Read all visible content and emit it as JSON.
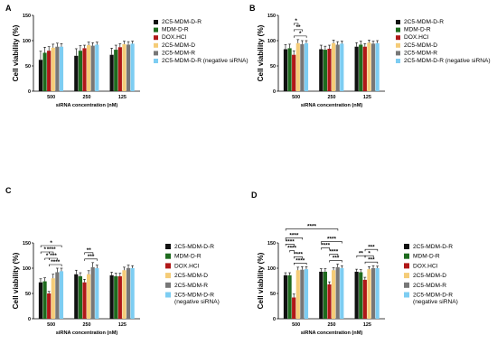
{
  "colors": [
    "#111111",
    "#1e6b1e",
    "#b01818",
    "#f5cc78",
    "#777777",
    "#7dcdf2"
  ],
  "chart_data": [
    {
      "panel_label": "A",
      "type": "bar",
      "ylabel": "Cell viability  (%)",
      "xlabel": "siRNA concentration (nM)",
      "ylim": [
        0,
        150
      ],
      "yticks": [
        "0",
        "50",
        "100",
        "150"
      ],
      "categories": [
        "500",
        "250",
        "125"
      ],
      "legend": [
        "2C5-MDM-D-R",
        "MDM-D-R",
        "DOX.HCl",
        "2C5-MDM-D",
        "2C5-MDM-R",
        "2C5-MDM-D-R (negative siRNA)"
      ],
      "series": [
        {
          "name": "2C5-MDM-D-R",
          "values": [
            62,
            70,
            72
          ],
          "errors": [
            17,
            14,
            13
          ]
        },
        {
          "name": "MDM-D-R",
          "values": [
            76,
            80,
            82
          ],
          "errors": [
            11,
            10,
            9
          ]
        },
        {
          "name": "DOX.HCl",
          "values": [
            80,
            85,
            87
          ],
          "errors": [
            8,
            6,
            7
          ]
        },
        {
          "name": "2C5-MDM-D",
          "values": [
            86,
            91,
            93
          ],
          "errors": [
            7,
            6,
            6
          ]
        },
        {
          "name": "2C5-MDM-R",
          "values": [
            88,
            90,
            92
          ],
          "errors": [
            7,
            6,
            6
          ]
        },
        {
          "name": "2C5-MDM-D-R (negative siRNA)",
          "values": [
            88,
            92,
            94
          ],
          "errors": [
            6,
            5,
            5
          ]
        }
      ],
      "significance": []
    },
    {
      "panel_label": "B",
      "type": "bar",
      "ylabel": "Cell viability  (%)",
      "xlabel": "siRNA concentration (nM)",
      "ylim": [
        0,
        150
      ],
      "yticks": [
        "0",
        "50",
        "100",
        "150"
      ],
      "categories": [
        "500",
        "250",
        "125"
      ],
      "legend": [
        "2C5-MDM-D-R",
        "MDM-D-R",
        "DOX.HCl",
        "2C5-MDM-D",
        "2C5-MDM-R",
        "2C5-MDM-D-R (negative siRNA)"
      ],
      "series": [
        {
          "name": "2C5-MDM-D-R",
          "values": [
            83,
            83,
            88
          ],
          "errors": [
            9,
            8,
            8
          ]
        },
        {
          "name": "MDM-D-R",
          "values": [
            85,
            82,
            92
          ],
          "errors": [
            8,
            7,
            7
          ]
        },
        {
          "name": "DOX.HCl",
          "values": [
            72,
            84,
            88
          ],
          "errors": [
            8,
            7,
            6
          ]
        },
        {
          "name": "2C5-MDM-D",
          "values": [
            95,
            95,
            96
          ],
          "errors": [
            7,
            6,
            5
          ]
        },
        {
          "name": "2C5-MDM-R",
          "values": [
            93,
            92,
            94
          ],
          "errors": [
            7,
            6,
            5
          ]
        },
        {
          "name": "2C5-MDM-D-R (negative siRNA)",
          "values": [
            95,
            94,
            95
          ],
          "errors": [
            5,
            5,
            5
          ]
        }
      ],
      "significance": [
        {
          "text": "*",
          "from": [
            0,
            2
          ],
          "to": [
            0,
            5
          ],
          "level": 0
        },
        {
          "text": "**",
          "from": [
            0,
            2
          ],
          "to": [
            0,
            4
          ],
          "level": 1
        },
        {
          "text": "*",
          "from": [
            0,
            2
          ],
          "to": [
            0,
            3
          ],
          "level": 2
        }
      ]
    },
    {
      "panel_label": "C",
      "type": "bar",
      "ylabel": "Cell viability  (%)",
      "xlabel": "siRNA concentration (nM)",
      "ylim": [
        0,
        150
      ],
      "yticks": [
        "0",
        "50",
        "100",
        "150"
      ],
      "categories": [
        "500",
        "250",
        "125"
      ],
      "legend": [
        "2C5-MDM-D-R",
        "MDM-D-R",
        "DOX.HCl",
        "2C5-MDM-D",
        "2C5-MDM-R",
        "2C5-MDM-D-R (negative siRNA)"
      ],
      "series": [
        {
          "name": "2C5-MDM-D-R",
          "values": [
            72,
            88,
            86
          ],
          "errors": [
            7,
            8,
            6
          ]
        },
        {
          "name": "MDM-D-R",
          "values": [
            74,
            84,
            84
          ],
          "errors": [
            7,
            7,
            6
          ]
        },
        {
          "name": "DOX.HCl",
          "values": [
            50,
            72,
            84
          ],
          "errors": [
            4,
            6,
            6
          ]
        },
        {
          "name": "2C5-MDM-D",
          "values": [
            80,
            88,
            96
          ],
          "errors": [
            8,
            7,
            6
          ]
        },
        {
          "name": "2C5-MDM-R",
          "values": [
            92,
            102,
            100
          ],
          "errors": [
            8,
            9,
            6
          ]
        },
        {
          "name": "2C5-MDM-D-R (negative siRNA)",
          "values": [
            94,
            100,
            100
          ],
          "errors": [
            6,
            6,
            5
          ]
        }
      ],
      "significance": [
        {
          "text": "****",
          "from": [
            0,
            2
          ],
          "to": [
            0,
            5
          ],
          "level": 0
        },
        {
          "text": "***",
          "from": [
            0,
            2
          ],
          "to": [
            0,
            4
          ],
          "level": 1
        },
        {
          "text": "*",
          "from": [
            0,
            1
          ],
          "to": [
            0,
            2
          ],
          "level": 1
        },
        {
          "text": "****",
          "from": [
            0,
            2
          ],
          "to": [
            0,
            3
          ],
          "level": 2
        },
        {
          "text": "*",
          "from": [
            0,
            0
          ],
          "to": [
            0,
            2
          ],
          "level": 2
        },
        {
          "text": "*",
          "from": [
            0,
            0
          ],
          "to": [
            0,
            5
          ],
          "level": 3
        },
        {
          "text": "***",
          "from": [
            1,
            2
          ],
          "to": [
            1,
            5
          ],
          "level": 0
        },
        {
          "text": "**",
          "from": [
            1,
            2
          ],
          "to": [
            1,
            4
          ],
          "level": 1
        }
      ]
    },
    {
      "panel_label": "D",
      "type": "bar",
      "ylabel": "Cell viability  (%)",
      "xlabel": "siRNA concentration (nM)",
      "ylim": [
        0,
        150
      ],
      "yticks": [
        "0",
        "50",
        "100",
        "150"
      ],
      "categories": [
        "500",
        "250",
        "125"
      ],
      "legend": [
        "2C5-MDM-D-R",
        "MDM-D-R",
        "DOX.HCl",
        "2C5-MDM-D",
        "2C5-MDM-R",
        "2C5-MDM-D-R (negative siRNA)"
      ],
      "series": [
        {
          "name": "2C5-MDM-D-R",
          "values": [
            86,
            93,
            93
          ],
          "errors": [
            5,
            6,
            5
          ]
        },
        {
          "name": "MDM-D-R",
          "values": [
            86,
            93,
            92
          ],
          "errors": [
            5,
            6,
            5
          ]
        },
        {
          "name": "DOX.HCl",
          "values": [
            42,
            68,
            77
          ],
          "errors": [
            7,
            5,
            5
          ]
        },
        {
          "name": "2C5-MDM-D",
          "values": [
            96,
            96,
            98
          ],
          "errors": [
            6,
            5,
            5
          ]
        },
        {
          "name": "2C5-MDM-R",
          "values": [
            97,
            102,
            100
          ],
          "errors": [
            6,
            6,
            5
          ]
        },
        {
          "name": "2C5-MDM-D-R (negative siRNA)",
          "values": [
            98,
            100,
            100
          ],
          "errors": [
            5,
            5,
            4
          ]
        }
      ],
      "significance": [
        {
          "text": "****",
          "from": [
            0,
            2
          ],
          "to": [
            0,
            5
          ],
          "level": 0
        },
        {
          "text": "****",
          "from": [
            0,
            2
          ],
          "to": [
            0,
            4
          ],
          "level": 1
        },
        {
          "text": "****",
          "from": [
            0,
            1
          ],
          "to": [
            0,
            2
          ],
          "level": 2
        },
        {
          "text": "****",
          "from": [
            0,
            0
          ],
          "to": [
            0,
            2
          ],
          "level": 3
        },
        {
          "text": "****",
          "from": [
            0,
            0
          ],
          "to": [
            0,
            4
          ],
          "level": 4
        },
        {
          "text": "****",
          "from": [
            0,
            0
          ],
          "to": [
            1,
            4
          ],
          "level": 5
        },
        {
          "text": "***",
          "from": [
            1,
            2
          ],
          "to": [
            1,
            5
          ],
          "level": 0
        },
        {
          "text": "****",
          "from": [
            1,
            2
          ],
          "to": [
            1,
            4
          ],
          "level": 1
        },
        {
          "text": "****",
          "from": [
            1,
            0
          ],
          "to": [
            1,
            2
          ],
          "level": 2
        },
        {
          "text": "****",
          "from": [
            1,
            0
          ],
          "to": [
            1,
            5
          ],
          "level": 3
        },
        {
          "text": "***",
          "from": [
            2,
            2
          ],
          "to": [
            2,
            5
          ],
          "level": 0
        },
        {
          "text": "*",
          "from": [
            2,
            2
          ],
          "to": [
            2,
            4
          ],
          "level": 1
        },
        {
          "text": "**",
          "from": [
            2,
            0
          ],
          "to": [
            2,
            2
          ],
          "level": 1
        },
        {
          "text": "***",
          "from": [
            2,
            2
          ],
          "to": [
            2,
            5
          ],
          "level": 2
        }
      ]
    }
  ]
}
